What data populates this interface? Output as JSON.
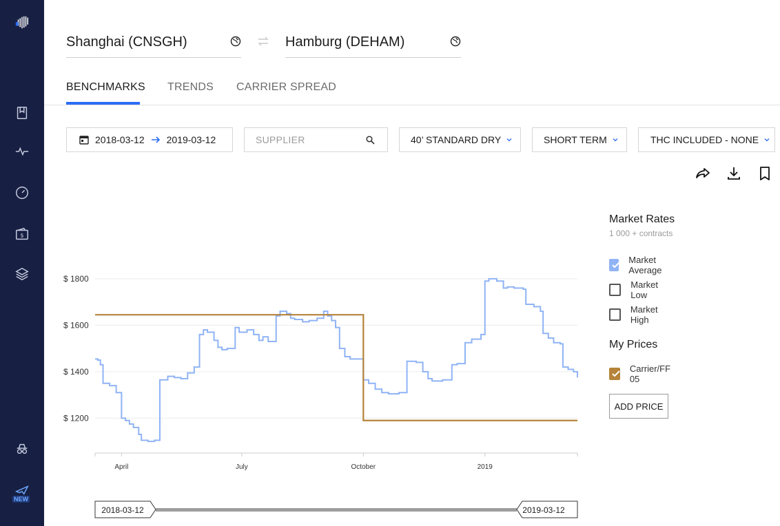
{
  "route": {
    "origin": "Shanghai (CNSGH)",
    "destination": "Hamburg (DEHAM)"
  },
  "tabs": [
    {
      "label": "BENCHMARKS",
      "active": true
    },
    {
      "label": "TRENDS",
      "active": false
    },
    {
      "label": "CARRIER SPREAD",
      "active": false
    }
  ],
  "filters": {
    "date_from": "2018-03-12",
    "date_to": "2019-03-12",
    "supplier_placeholder": "SUPPLIER",
    "container": "40’ STANDARD DRY",
    "term": "SHORT TERM",
    "thc": "THC INCLUDED - NONE"
  },
  "legend": {
    "market_title": "Market Rates",
    "market_sub": "1 000 + contracts",
    "items": [
      {
        "label": "Market Average",
        "checked": true
      },
      {
        "label": "Market Low",
        "checked": false
      },
      {
        "label": "Market High",
        "checked": false
      }
    ],
    "my_prices_title": "My Prices",
    "my_items": [
      {
        "label": "Carrier/FF 05",
        "checked": true
      }
    ],
    "add_price_label": "ADD PRICE"
  },
  "colors": {
    "sidebar": "#172043",
    "accent": "#2b6cf6",
    "market_average": "#8fb3f5",
    "carrier": "#b5833a"
  },
  "range": {
    "start": "2018-03-12",
    "end": "2019-03-12"
  },
  "chart_data": {
    "type": "line",
    "title": "",
    "xlabel": "",
    "ylabel": "",
    "x_range": [
      "2018-03-12",
      "2019-03-12"
    ],
    "ylim": [
      1050,
      1850
    ],
    "y_ticks": [
      1200,
      1400,
      1600,
      1800
    ],
    "y_tick_labels": [
      "$ 1200",
      "$ 1400",
      "$ 1600",
      "$ 1800"
    ],
    "x_ticks": [
      {
        "date": "2018-04-01",
        "label": "April"
      },
      {
        "date": "2018-07-01",
        "label": "July"
      },
      {
        "date": "2018-10-01",
        "label": "October"
      },
      {
        "date": "2019-01-01",
        "label": "2019"
      }
    ],
    "grid": true,
    "legend": "right",
    "series": [
      {
        "name": "Market Average",
        "color": "#8fb3f5",
        "step": true,
        "points": [
          [
            "2018-03-12",
            1455
          ],
          [
            "2018-03-14",
            1450
          ],
          [
            "2018-03-16",
            1430
          ],
          [
            "2018-03-18",
            1350
          ],
          [
            "2018-03-23",
            1340
          ],
          [
            "2018-03-28",
            1310
          ],
          [
            "2018-04-01",
            1200
          ],
          [
            "2018-04-04",
            1190
          ],
          [
            "2018-04-07",
            1175
          ],
          [
            "2018-04-10",
            1160
          ],
          [
            "2018-04-14",
            1130
          ],
          [
            "2018-04-16",
            1105
          ],
          [
            "2018-04-21",
            1100
          ],
          [
            "2018-04-26",
            1105
          ],
          [
            "2018-04-30",
            1365
          ],
          [
            "2018-05-06",
            1380
          ],
          [
            "2018-05-11",
            1375
          ],
          [
            "2018-05-16",
            1370
          ],
          [
            "2018-05-21",
            1395
          ],
          [
            "2018-05-26",
            1420
          ],
          [
            "2018-05-30",
            1560
          ],
          [
            "2018-06-02",
            1580
          ],
          [
            "2018-06-05",
            1570
          ],
          [
            "2018-06-10",
            1535
          ],
          [
            "2018-06-13",
            1505
          ],
          [
            "2018-06-16",
            1495
          ],
          [
            "2018-06-20",
            1500
          ],
          [
            "2018-06-26",
            1590
          ],
          [
            "2018-06-29",
            1570
          ],
          [
            "2018-07-05",
            1580
          ],
          [
            "2018-07-10",
            1560
          ],
          [
            "2018-07-14",
            1535
          ],
          [
            "2018-07-17",
            1550
          ],
          [
            "2018-07-21",
            1530
          ],
          [
            "2018-07-27",
            1640
          ],
          [
            "2018-07-30",
            1660
          ],
          [
            "2018-08-04",
            1650
          ],
          [
            "2018-08-07",
            1630
          ],
          [
            "2018-08-10",
            1625
          ],
          [
            "2018-08-16",
            1615
          ],
          [
            "2018-08-21",
            1620
          ],
          [
            "2018-08-27",
            1630
          ],
          [
            "2018-09-01",
            1660
          ],
          [
            "2018-09-04",
            1640
          ],
          [
            "2018-09-07",
            1620
          ],
          [
            "2018-09-10",
            1590
          ],
          [
            "2018-09-13",
            1500
          ],
          [
            "2018-09-17",
            1465
          ],
          [
            "2018-09-21",
            1455
          ],
          [
            "2018-10-01",
            1365
          ],
          [
            "2018-10-05",
            1350
          ],
          [
            "2018-10-10",
            1325
          ],
          [
            "2018-10-15",
            1310
          ],
          [
            "2018-10-20",
            1305
          ],
          [
            "2018-10-28",
            1310
          ],
          [
            "2018-11-03",
            1445
          ],
          [
            "2018-11-10",
            1440
          ],
          [
            "2018-11-15",
            1400
          ],
          [
            "2018-11-19",
            1370
          ],
          [
            "2018-11-22",
            1360
          ],
          [
            "2018-11-30",
            1365
          ],
          [
            "2018-12-07",
            1430
          ],
          [
            "2018-12-11",
            1435
          ],
          [
            "2018-12-17",
            1525
          ],
          [
            "2018-12-22",
            1540
          ],
          [
            "2018-12-29",
            1560
          ],
          [
            "2019-01-01",
            1790
          ],
          [
            "2019-01-04",
            1800
          ],
          [
            "2019-01-10",
            1790
          ],
          [
            "2019-01-15",
            1760
          ],
          [
            "2019-01-18",
            1765
          ],
          [
            "2019-01-23",
            1760
          ],
          [
            "2019-01-30",
            1755
          ],
          [
            "2019-02-01",
            1690
          ],
          [
            "2019-02-07",
            1680
          ],
          [
            "2019-02-12",
            1660
          ],
          [
            "2019-02-14",
            1565
          ],
          [
            "2019-02-18",
            1545
          ],
          [
            "2019-02-22",
            1525
          ],
          [
            "2019-02-27",
            1520
          ],
          [
            "2019-03-01",
            1420
          ],
          [
            "2019-03-05",
            1410
          ],
          [
            "2019-03-09",
            1400
          ],
          [
            "2019-03-12",
            1375
          ]
        ]
      },
      {
        "name": "Carrier/FF 05",
        "color": "#b5833a",
        "step": true,
        "points": [
          [
            "2018-03-12",
            1645
          ],
          [
            "2018-10-01",
            1645
          ],
          [
            "2018-10-01",
            1190
          ],
          [
            "2019-03-12",
            1190
          ]
        ]
      }
    ]
  }
}
